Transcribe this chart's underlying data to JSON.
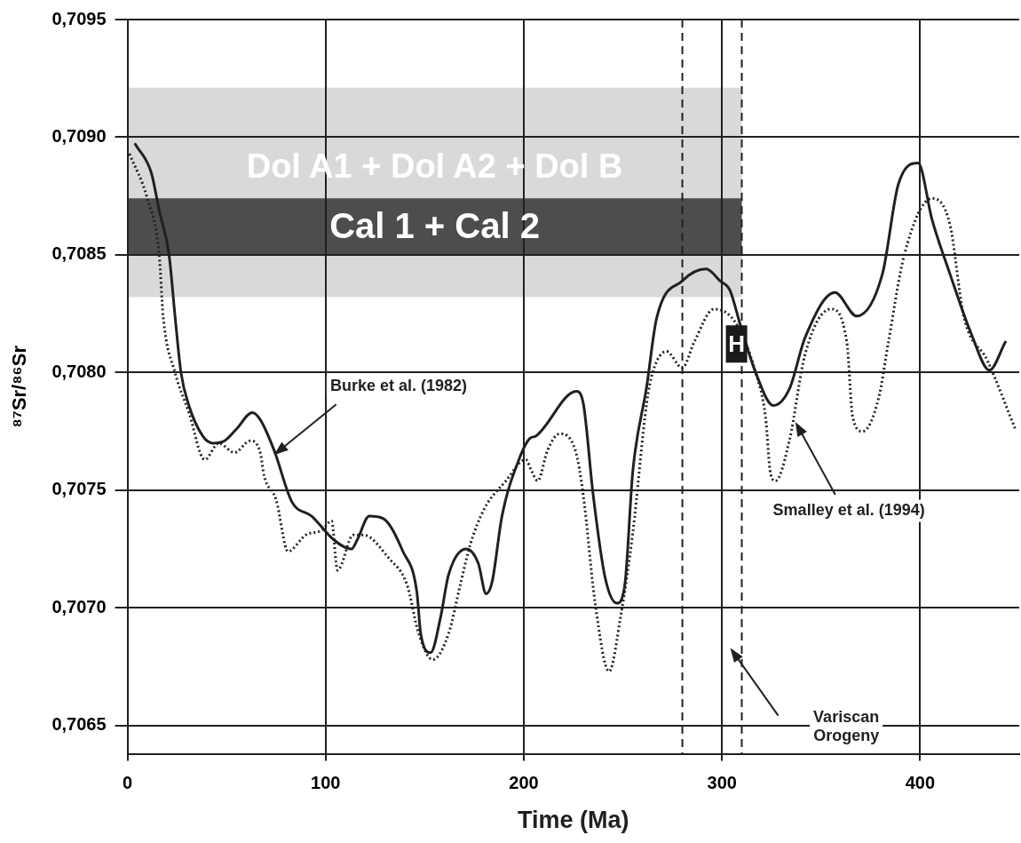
{
  "chart_data": {
    "type": "line",
    "xlabel": "Time (Ma)",
    "ylabel": "⁸⁷Sr/⁸⁶Sr",
    "xlim": [
      0,
      450
    ],
    "xticks": [
      0,
      100,
      200,
      300,
      400
    ],
    "ylim": [
      0.70638,
      0.7095
    ],
    "yticks": [
      {
        "value": 0.7065,
        "label": "0,7065"
      },
      {
        "value": 0.707,
        "label": "0,7070"
      },
      {
        "value": 0.7075,
        "label": "0,7075"
      },
      {
        "value": 0.708,
        "label": "0,7080"
      },
      {
        "value": 0.7085,
        "label": "0,7085"
      },
      {
        "value": 0.709,
        "label": "0,7090"
      },
      {
        "value": 0.7095,
        "label": "0,7095"
      }
    ],
    "grid": true,
    "legend": false,
    "marker": "none",
    "series": [
      {
        "color": "#231f20",
        "line_style": "solid",
        "x": [
          4,
          12,
          16,
          21,
          24,
          27,
          31,
          38,
          43,
          49,
          55,
          63,
          67,
          74,
          83,
          93,
          104,
          113,
          116,
          122,
          129,
          139,
          146,
          148,
          153,
          158,
          162,
          171,
          177,
          181,
          184,
          189,
          198,
          203,
          206,
          226.5,
          230,
          235,
          241,
          247,
          251,
          255,
          262,
          267,
          280,
          292,
          299,
          304,
          309,
          317,
          326,
          334,
          342,
          357,
          368,
          381,
          389,
          399,
          406,
          415,
          426,
          435,
          443
        ],
        "values": [
          0.70897,
          0.70885,
          0.70869,
          0.7085,
          0.70824,
          0.708,
          0.70786,
          0.70773,
          0.7077,
          0.70771,
          0.70776,
          0.70783,
          0.7078,
          0.70767,
          0.70745,
          0.70739,
          0.70729,
          0.70725,
          0.70729,
          0.70739,
          0.70738,
          0.70724,
          0.70707,
          0.70689,
          0.70681,
          0.70696,
          0.70714,
          0.70725,
          0.70719,
          0.70706,
          0.70711,
          0.70739,
          0.70764,
          0.70772,
          0.70773,
          0.70792,
          0.70787,
          0.70748,
          0.70713,
          0.70702,
          0.7071,
          0.70758,
          0.70794,
          0.70823,
          0.70839,
          0.70844,
          0.70839,
          0.70835,
          0.70821,
          0.708,
          0.70786,
          0.70793,
          0.70815,
          0.70834,
          0.70824,
          0.70842,
          0.7088,
          0.70889,
          0.70865,
          0.70842,
          0.70816,
          0.70801,
          0.70813
        ]
      },
      {
        "color": "#231f20",
        "line_style": "dotted",
        "x": [
          1,
          10,
          16,
          18,
          24,
          31,
          39,
          46,
          54,
          62,
          67,
          69,
          75,
          81,
          90,
          98,
          103,
          106,
          114,
          119,
          132,
          141,
          147,
          154,
          162,
          168,
          173,
          180,
          191,
          201,
          204,
          207,
          212,
          218,
          226,
          230,
          236,
          243,
          249,
          255,
          262,
          265,
          272,
          280,
          286,
          296,
          307,
          317,
          322,
          324.5,
          327,
          334,
          342,
          355,
          363,
          366,
          371,
          379,
          384,
          392,
          406,
          415,
          422,
          434,
          448
        ],
        "values": [
          0.70893,
          0.70874,
          0.7085,
          0.70824,
          0.708,
          0.70783,
          0.70763,
          0.7077,
          0.70766,
          0.70771,
          0.70766,
          0.70756,
          0.70746,
          0.70724,
          0.70731,
          0.70733,
          0.70737,
          0.70716,
          0.70731,
          0.70731,
          0.70721,
          0.7071,
          0.70689,
          0.70678,
          0.70689,
          0.7071,
          0.70727,
          0.70742,
          0.70754,
          0.70763,
          0.70758,
          0.70754,
          0.70767,
          0.70774,
          0.70767,
          0.70748,
          0.70702,
          0.70673,
          0.70697,
          0.70732,
          0.70787,
          0.708,
          0.70809,
          0.70802,
          0.70813,
          0.70827,
          0.70821,
          0.708,
          0.70781,
          0.70757,
          0.70754,
          0.70771,
          0.70808,
          0.70827,
          0.70813,
          0.70781,
          0.70775,
          0.70789,
          0.70813,
          0.7085,
          0.70874,
          0.70863,
          0.70824,
          0.70805,
          0.70776
        ]
      }
    ],
    "bands": [
      {
        "axis": "y",
        "from": 0.70832,
        "to": 0.70921,
        "label": "Dol A1 + Dol A2 + Dol B",
        "color": "#d9d9d9"
      },
      {
        "axis": "y",
        "from": 0.7085,
        "to": 0.70874,
        "label": "Cal 1 + Cal 2",
        "color": "#4d4d4d"
      }
    ],
    "ref_lines": [
      {
        "axis": "x",
        "value": 280,
        "line_style": "dashed",
        "color": "#231f20"
      },
      {
        "axis": "x",
        "value": 310,
        "line_style": "dashed",
        "color": "#231f20"
      }
    ],
    "annotations": [
      "Burke et al. (1982)",
      "Smalley et al. (1994)",
      "Variscan\nOrogeny",
      "H"
    ]
  }
}
